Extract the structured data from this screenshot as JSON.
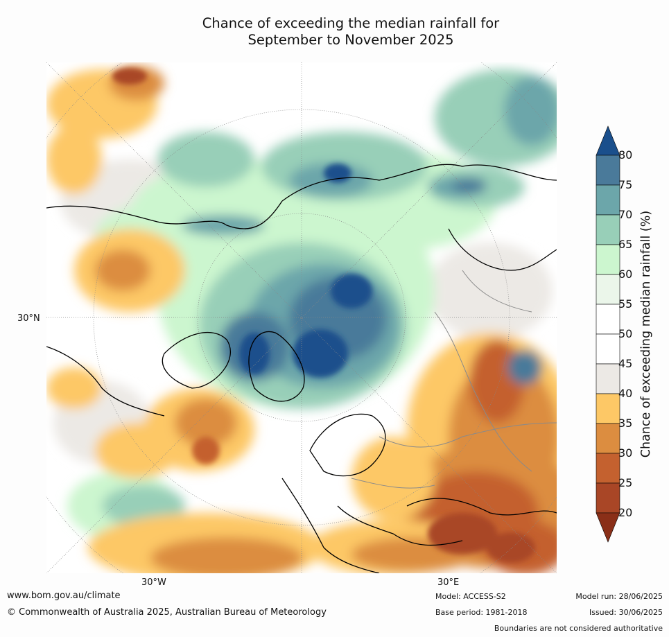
{
  "title_line1": "Chance of exceeding the median rainfall for",
  "title_line2": "September to November 2025",
  "map": {
    "labels": {
      "lat_30n": "30°N",
      "lon_30w": "30°W",
      "lon_30e": "30°E"
    },
    "projection": "north polar stereographic",
    "legend_placement": "right"
  },
  "colorbar": {
    "title": "Chance of exceeding median rainfall (%)",
    "ticks": [
      "80",
      "75",
      "70",
      "65",
      "60",
      "55",
      "50",
      "45",
      "40",
      "35",
      "30",
      "25",
      "20"
    ],
    "colors": {
      "above_80": "#1a4f8c",
      "75_80": "#4a7a9a",
      "70_75": "#6ca6aa",
      "65_70": "#98cfb8",
      "60_65": "#ccf6cf",
      "55_60": "#ebf6ea",
      "50_55": "#ffffff",
      "45_50": "#ffffff",
      "40_45": "#ece9e5",
      "35_40": "#fdc866",
      "30_35": "#dc8d40",
      "25_30": "#c4612f",
      "20_25": "#a94626",
      "below_20": "#8a2f18"
    }
  },
  "footer": {
    "url": "www.bom.gov.au/climate",
    "copyright": "© Commonwealth of Australia 2025, Australian Bureau of Meteorology",
    "model": "Model: ACCESS-S2",
    "base_period": "Base period: 1981-2018",
    "model_run": "Model run: 28/06/2025",
    "issued": "Issued: 30/06/2025",
    "disclaimer": "Boundaries are not considered authoritative"
  }
}
